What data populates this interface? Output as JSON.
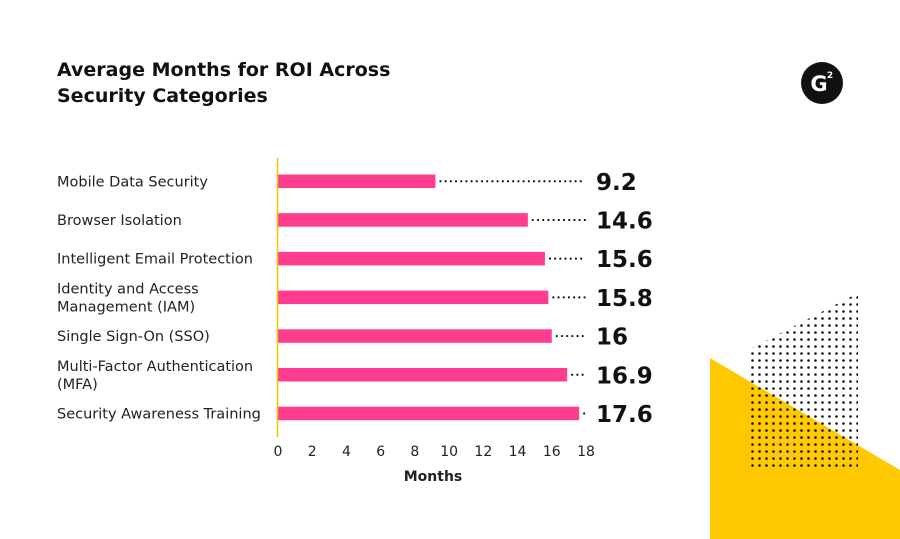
{
  "chart_data": {
    "type": "bar",
    "orientation": "horizontal",
    "title_lines": [
      "Average Months for ROI Across",
      "Security Categories"
    ],
    "categories": [
      [
        "Mobile Data Security"
      ],
      [
        "Browser Isolation"
      ],
      [
        "Intelligent Email Protection"
      ],
      [
        "Identity and Access",
        "Management (IAM)"
      ],
      [
        "Single Sign-On (SSO)"
      ],
      [
        "Multi-Factor Authentication",
        "(MFA)"
      ],
      [
        "Security Awareness Training"
      ]
    ],
    "values": [
      9.2,
      14.6,
      15.6,
      15.8,
      16,
      16.9,
      17.6
    ],
    "value_labels": [
      "9.2",
      "14.6",
      "15.6",
      "15.8",
      "16",
      "16.9",
      "17.6"
    ],
    "xlabel": "Months",
    "xlim": [
      0,
      18
    ],
    "xticks": [
      0,
      2,
      4,
      6,
      8,
      10,
      12,
      14,
      16,
      18
    ],
    "grid": false,
    "legend": "none"
  },
  "colors": {
    "bar": "#ff3d8f",
    "axis": "#f2c200",
    "dots": "#111111",
    "accent_yellow": "#ffc800",
    "logo_bg": "#111111"
  },
  "logo": {
    "letter": "G",
    "superscript": "2"
  }
}
